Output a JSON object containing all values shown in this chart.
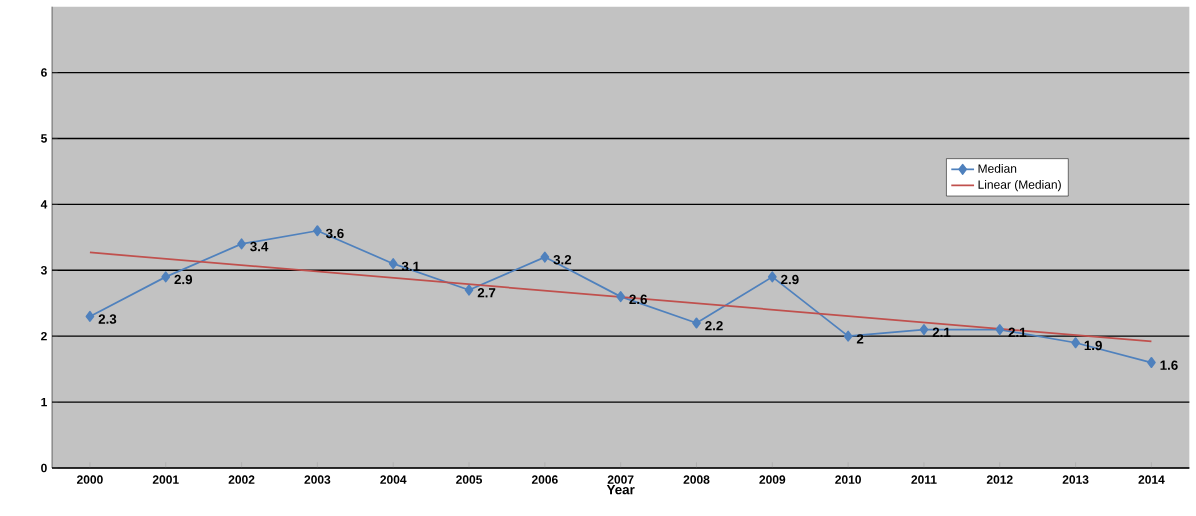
{
  "chart_data": {
    "type": "line",
    "xlabel": "Year",
    "x": [
      2000,
      2001,
      2002,
      2003,
      2004,
      2005,
      2006,
      2007,
      2008,
      2009,
      2010,
      2011,
      2012,
      2013,
      2014
    ],
    "xlim": [
      1999.5,
      2014.5
    ],
    "xticks": [
      2000,
      2001,
      2002,
      2003,
      2004,
      2005,
      2006,
      2007,
      2008,
      2009,
      2010,
      2011,
      2012,
      2013,
      2014
    ],
    "ylim": [
      0,
      7
    ],
    "yticks": [
      0,
      1,
      2,
      3,
      4,
      5,
      6
    ],
    "grid": "y",
    "legend": "right",
    "series": [
      {
        "name": "Median",
        "color": "#4f81bd",
        "marker": "diamond",
        "values": [
          2.3,
          2.9,
          3.4,
          3.6,
          3.1,
          2.7,
          3.2,
          2.6,
          2.2,
          2.9,
          2,
          2.1,
          2.1,
          1.9,
          1.6
        ],
        "value_labels": [
          "2.3",
          "2.9",
          "3.4",
          "3.6",
          "3.1",
          "2.7",
          "3.2",
          "2.6",
          "2.2",
          "2.9",
          "2",
          "2.1",
          "2.1",
          "1.9",
          "1.6"
        ]
      },
      {
        "name": "Linear (Median)",
        "type": "line",
        "color": "#c0504d",
        "marker": "none",
        "x": [
          2000,
          2014
        ],
        "values": [
          3.27,
          1.92
        ]
      }
    ]
  }
}
